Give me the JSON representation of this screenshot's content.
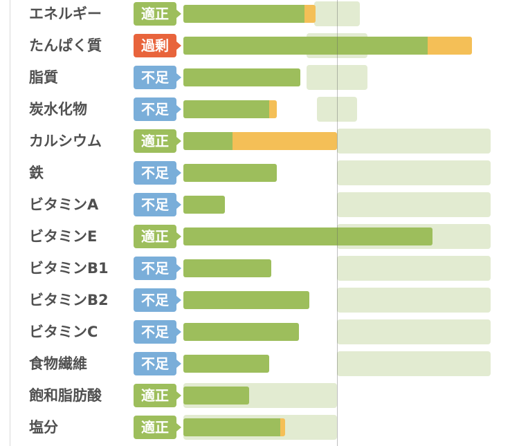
{
  "chart_data": {
    "type": "bar",
    "orientation": "horizontal",
    "stacked": true,
    "categories": [
      "エネルギー",
      "たんぱく質",
      "脂質",
      "炭水化物",
      "カルシウム",
      "鉄",
      "ビタミンA",
      "ビタミンE",
      "ビタミンB1",
      "ビタミンB2",
      "ビタミンC",
      "食物繊維",
      "飽和脂肪酸",
      "塩分"
    ],
    "series": [
      {
        "color": "#9dbe5c",
        "values": [
          79,
          159,
          76,
          56,
          32,
          61,
          27,
          162,
          57,
          82,
          75,
          56,
          43,
          63
        ]
      },
      {
        "color": "#f4bf57",
        "values": [
          7,
          29,
          0,
          5,
          68,
          0,
          0,
          0,
          0,
          0,
          0,
          0,
          0,
          3
        ]
      }
    ],
    "target_ranges": [
      [
        85,
        115
      ],
      [
        80,
        120
      ],
      [
        80,
        120
      ],
      [
        87,
        113
      ],
      [
        100,
        200
      ],
      [
        100,
        200
      ],
      [
        100,
        200
      ],
      [
        100,
        200
      ],
      [
        100,
        200
      ],
      [
        100,
        200
      ],
      [
        100,
        200
      ],
      [
        100,
        200
      ],
      [
        0,
        100
      ],
      [
        0,
        100
      ]
    ],
    "target_range_color": "#e2ebd1",
    "reference_line": 100,
    "xlim": [
      0,
      200
    ],
    "grid": false,
    "legend": "none",
    "status": [
      "適正",
      "過剰",
      "不足",
      "不足",
      "適正",
      "不足",
      "不足",
      "適正",
      "不足",
      "不足",
      "不足",
      "不足",
      "適正",
      "適正"
    ],
    "status_colors": {
      "適正": "#9dbe5c",
      "過剰": "#e8643c",
      "不足": "#7aaed9"
    }
  }
}
